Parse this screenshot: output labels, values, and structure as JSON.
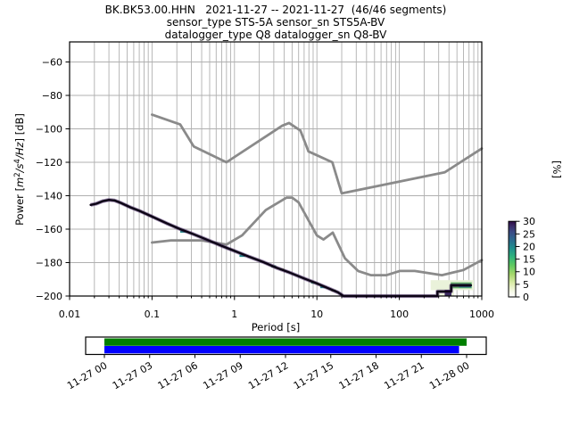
{
  "figure": {
    "title": "BK.BK53.00.HHN   2021-11-27 -- 2021-11-27  (46/46 segments)",
    "subtitle_sensor": "sensor_type STS-5A sensor_sn STS5A-BV",
    "subtitle_datalogger": "datalogger_type Q8 datalogger_sn Q8-BV"
  },
  "chart_data": {
    "type": "line",
    "title": "BK.BK53.00.HHN   2021-11-27 -- 2021-11-27  (46/46 segments)",
    "xlabel": "Period [s]",
    "ylabel": "Power [m2/s4/Hz] [dB]",
    "ylabel_parts": {
      "pre": "Power [",
      "m": "m",
      "sup1": "2",
      "s": "/s",
      "sup2": "4",
      "hz": "/Hz",
      "post": "] [dB]"
    },
    "xscale": "log",
    "xlim": [
      0.01,
      1000
    ],
    "ylim": [
      -200,
      -48
    ],
    "grid": true,
    "x_ticks": [
      {
        "value": 0.01,
        "label": "0.01"
      },
      {
        "value": 0.1,
        "label": "0.1"
      },
      {
        "value": 1,
        "label": "1"
      },
      {
        "value": 10,
        "label": "10"
      },
      {
        "value": 100,
        "label": "100"
      },
      {
        "value": 1000,
        "label": "1000"
      }
    ],
    "y_ticks": [
      {
        "value": -60,
        "label": "−60"
      },
      {
        "value": -80,
        "label": "−80"
      },
      {
        "value": -100,
        "label": "−100"
      },
      {
        "value": -120,
        "label": "−120"
      },
      {
        "value": -140,
        "label": "−140"
      },
      {
        "value": -160,
        "label": "−160"
      },
      {
        "value": -180,
        "label": "−180"
      },
      {
        "value": -200,
        "label": "−200"
      }
    ],
    "series": [
      {
        "name": "noise-model-high",
        "color": "#8a8a8a",
        "width": 2.8,
        "points": [
          [
            0.1,
            -91.5
          ],
          [
            0.22,
            -97.4
          ],
          [
            0.32,
            -110.5
          ],
          [
            0.8,
            -120.0
          ],
          [
            3.8,
            -98.1
          ],
          [
            4.6,
            -96.5
          ],
          [
            6.3,
            -101.0
          ],
          [
            7.9,
            -113.5
          ],
          [
            15.4,
            -120.0
          ],
          [
            20.0,
            -138.6
          ],
          [
            354.8,
            -126.0
          ],
          [
            1000,
            -111.8
          ]
        ]
      },
      {
        "name": "noise-model-low",
        "color": "#8a8a8a",
        "width": 2.8,
        "points": [
          [
            0.1,
            -168.0
          ],
          [
            0.17,
            -166.7
          ],
          [
            0.4,
            -166.7
          ],
          [
            0.8,
            -169.2
          ],
          [
            1.24,
            -163.7
          ],
          [
            2.4,
            -148.6
          ],
          [
            4.3,
            -141.1
          ],
          [
            5.0,
            -141.1
          ],
          [
            6.0,
            -144.0
          ],
          [
            10.0,
            -163.8
          ],
          [
            12.0,
            -166.2
          ],
          [
            15.6,
            -162.1
          ],
          [
            21.9,
            -177.5
          ],
          [
            31.6,
            -185.0
          ],
          [
            45.0,
            -187.5
          ],
          [
            70.0,
            -187.5
          ],
          [
            101.0,
            -185.0
          ],
          [
            154.0,
            -185.0
          ],
          [
            328.0,
            -187.5
          ],
          [
            600.0,
            -184.4
          ],
          [
            1000,
            -178.5
          ]
        ]
      },
      {
        "name": "ppsd-mode",
        "color": "#0c0315",
        "width": 2.4,
        "halo": "#3f2060",
        "points": [
          [
            0.018,
            -145.5
          ],
          [
            0.021,
            -144.8
          ],
          [
            0.025,
            -143.3
          ],
          [
            0.03,
            -142.5
          ],
          [
            0.035,
            -142.8
          ],
          [
            0.042,
            -144.3
          ],
          [
            0.055,
            -147.0
          ],
          [
            0.07,
            -149.0
          ],
          [
            0.1,
            -152.5
          ],
          [
            0.15,
            -156.5
          ],
          [
            0.22,
            -160.0
          ],
          [
            0.3,
            -162.5
          ],
          [
            0.45,
            -166.0
          ],
          [
            0.7,
            -170.0
          ],
          [
            1.0,
            -173.0
          ],
          [
            1.5,
            -176.5
          ],
          [
            2.2,
            -179.5
          ],
          [
            3.2,
            -183.0
          ],
          [
            4.7,
            -186.0
          ],
          [
            7.0,
            -189.5
          ],
          [
            10.0,
            -192.5
          ],
          [
            14.0,
            -195.5
          ],
          [
            18.0,
            -197.8
          ],
          [
            21.0,
            -200.0
          ],
          [
            290.0,
            -200.0
          ],
          [
            290.0,
            -197.3
          ],
          [
            425.0,
            -197.3
          ],
          [
            425.0,
            -193.6
          ],
          [
            740.0,
            -193.6
          ]
        ]
      }
    ],
    "histogram_patches": [
      {
        "p": [
          240,
          800
        ],
        "db": [
          -190.5,
          -196.5
        ],
        "color": "#eaf2da"
      },
      {
        "p": [
          295,
          460
        ],
        "db": [
          -194.5,
          -200.0
        ],
        "color": "#eaf2da"
      },
      {
        "p": [
          420,
          755
        ],
        "db": [
          -191.8,
          -195.4
        ],
        "color": "#63b266"
      },
      {
        "p": [
          530,
          750
        ],
        "db": [
          -192.9,
          -194.9
        ],
        "color": "#24918c"
      },
      {
        "p": [
          355,
          428
        ],
        "db": [
          -196.3,
          -200.0
        ],
        "color": "#3a2a5e"
      },
      {
        "p": [
          0.22,
          0.26
        ],
        "db": [
          -160.9,
          -162.1
        ],
        "color": "#24918c"
      },
      {
        "p": [
          1.15,
          1.35
        ],
        "db": [
          -175.3,
          -176.6
        ],
        "color": "#24918c"
      },
      {
        "p": [
          2.8,
          3.2
        ],
        "db": [
          -181.7,
          -183.0
        ],
        "color": "#3fae6e"
      },
      {
        "p": [
          3.6,
          4.0
        ],
        "db": [
          -183.6,
          -184.8
        ],
        "color": "#90c943"
      },
      {
        "p": [
          8.5,
          9.6
        ],
        "db": [
          -191.3,
          -192.6
        ],
        "color": "#3fae6e"
      },
      {
        "p": [
          11,
          13
        ],
        "db": [
          -194.0,
          -195.3
        ],
        "color": "#24918c"
      },
      {
        "p": [
          15,
          17
        ],
        "db": [
          -196.2,
          -197.3
        ],
        "color": "#90c943"
      }
    ],
    "colorbar": {
      "label": "[%]",
      "vmin": 0,
      "vmax": 30,
      "tick_values": [
        0,
        5,
        10,
        15,
        20,
        25,
        30
      ],
      "gradient": [
        {
          "offset": 0.0,
          "color": "#ffffff"
        },
        {
          "offset": 0.07,
          "color": "#f6f9e8"
        },
        {
          "offset": 0.18,
          "color": "#dcecab"
        },
        {
          "offset": 0.3,
          "color": "#a5d76b"
        },
        {
          "offset": 0.42,
          "color": "#5fc961"
        },
        {
          "offset": 0.53,
          "color": "#2fb47c"
        },
        {
          "offset": 0.64,
          "color": "#21918d"
        },
        {
          "offset": 0.75,
          "color": "#2c6c8f"
        },
        {
          "offset": 0.86,
          "color": "#3b4a85"
        },
        {
          "offset": 0.94,
          "color": "#3b2a66"
        },
        {
          "offset": 1.0,
          "color": "#2e0a45"
        }
      ]
    },
    "coverage": {
      "data_color": "#007f00",
      "processed_color": "#0000ff",
      "data_span_hours": [
        0.0,
        24.0
      ],
      "processed_span_hours": [
        0.0,
        23.5
      ],
      "time_ticks": [
        "11-27 00",
        "11-27 03",
        "11-27 06",
        "11-27 09",
        "11-27 12",
        "11-27 15",
        "11-27 18",
        "11-27 21",
        "11-28 00"
      ]
    }
  },
  "colors": {
    "grid": "#b0b0b0",
    "frame": "#000000",
    "noise_models": "#8a8a8a",
    "background": "#ffffff"
  }
}
